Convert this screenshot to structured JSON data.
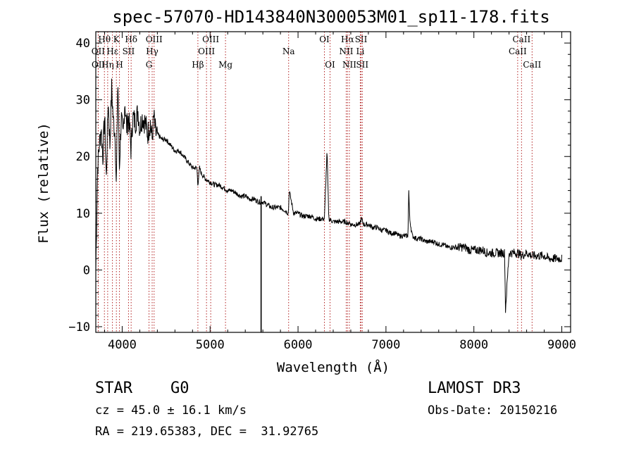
{
  "chart_data": {
    "type": "line",
    "title": "spec-57070-HD143840N300053M01_sp11-178.fits",
    "xlabel": "Wavelength (Å)",
    "ylabel": "Flux (relative)",
    "xlim": [
      3700,
      9100
    ],
    "ylim": [
      -11,
      42
    ],
    "xticks": [
      4000,
      5000,
      6000,
      7000,
      8000,
      9000
    ],
    "yticks": [
      -10,
      0,
      10,
      20,
      30,
      40
    ],
    "xtick_labels": [
      "4000",
      "5000",
      "6000",
      "7000",
      "8000",
      "9000"
    ],
    "ytick_labels": [
      "−10",
      "0",
      "10",
      "20",
      "30",
      "40"
    ],
    "spectrum": {
      "x": [
        3700,
        3720,
        3740,
        3760,
        3780,
        3800,
        3820,
        3840,
        3860,
        3880,
        3900,
        3920,
        3933,
        3950,
        3968,
        3990,
        4010,
        4030,
        4050,
        4070,
        4090,
        4101,
        4120,
        4150,
        4180,
        4200,
        4230,
        4260,
        4290,
        4320,
        4340,
        4360,
        4380,
        4400,
        4450,
        4500,
        4550,
        4600,
        4650,
        4700,
        4750,
        4800,
        4850,
        4861,
        4880,
        4900,
        4950,
        5000,
        5050,
        5100,
        5150,
        5200,
        5250,
        5300,
        5350,
        5400,
        5450,
        5500,
        5550,
        5600,
        5650,
        5700,
        5750,
        5800,
        5850,
        5890,
        5900,
        5950,
        6000,
        6050,
        6100,
        6150,
        6200,
        6250,
        6300,
        6330,
        6350,
        6400,
        6450,
        6500,
        6550,
        6563,
        6580,
        6600,
        6650,
        6700,
        6720,
        6750,
        6800,
        6850,
        6900,
        6950,
        7000,
        7050,
        7100,
        7150,
        7200,
        7250,
        7260,
        7270,
        7300,
        7350,
        7400,
        7450,
        7500,
        7550,
        7600,
        7650,
        7700,
        7750,
        7800,
        7850,
        7900,
        7950,
        8000,
        8050,
        8100,
        8150,
        8200,
        8250,
        8300,
        8350,
        8360,
        8400,
        8450,
        8500,
        8542,
        8600,
        8662,
        8700,
        8750,
        8800,
        8850,
        8900,
        8950,
        9000
      ],
      "y": [
        0,
        18,
        22,
        25,
        20,
        27,
        16,
        30,
        22,
        32,
        26,
        24,
        14,
        34,
        18,
        27,
        23,
        30,
        25,
        27,
        24,
        21,
        27,
        26,
        28,
        25,
        27,
        26,
        24,
        26,
        23,
        27,
        24,
        24,
        23,
        23,
        22,
        21,
        21,
        20,
        19,
        18,
        18,
        15,
        18,
        17,
        16,
        15.5,
        15,
        15,
        14.5,
        14,
        14,
        13.5,
        13,
        13,
        12.5,
        12.5,
        12,
        12,
        11.5,
        11,
        11,
        11,
        10.5,
        10,
        14,
        10,
        10,
        9.5,
        9.5,
        9.5,
        9,
        9,
        9,
        21,
        9,
        8.5,
        8.5,
        8.5,
        8.5,
        8,
        8.5,
        8,
        8,
        8,
        9,
        8,
        8,
        7.5,
        7.5,
        7,
        7,
        6.5,
        6.5,
        6,
        6,
        6,
        14,
        9,
        6,
        5.5,
        5.5,
        5,
        5,
        5,
        4.5,
        4.5,
        4,
        4,
        4,
        4,
        4,
        3.5,
        3.5,
        3.5,
        3.5,
        3,
        3,
        3,
        3,
        3,
        -7,
        3,
        3,
        3,
        2.5,
        3,
        2.5,
        2.5,
        2.5,
        2.5,
        2,
        2,
        2,
        2
      ]
    },
    "dropout_line": {
      "x": 5580,
      "y": [
        13,
        -11
      ]
    },
    "emission_lines": [
      {
        "name": "Hθ",
        "wavelength": 3798,
        "row": 1
      },
      {
        "name": "OII",
        "wavelength": 3727,
        "row": 2
      },
      {
        "name": "OII",
        "wavelength": 3729,
        "row": 3
      },
      {
        "name": "Hη",
        "wavelength": 3835,
        "row": 3
      },
      {
        "name": "K",
        "wavelength": 3934,
        "row": 1
      },
      {
        "name": "Hε",
        "wavelength": 3889,
        "row": 2
      },
      {
        "name": "H",
        "wavelength": 3969,
        "row": 3
      },
      {
        "name": "SII",
        "wavelength": 4072,
        "row": 2
      },
      {
        "name": "Hδ",
        "wavelength": 4102,
        "row": 1
      },
      {
        "name": "OIII",
        "wavelength": 4363,
        "row": 1
      },
      {
        "name": "Hγ",
        "wavelength": 4341,
        "row": 2
      },
      {
        "name": "G",
        "wavelength": 4305,
        "row": 3
      },
      {
        "name": "Hβ",
        "wavelength": 4861,
        "row": 3
      },
      {
        "name": "OIII",
        "wavelength": 5007,
        "row": 1
      },
      {
        "name": "OIII",
        "wavelength": 4959,
        "row": 2
      },
      {
        "name": "Mg",
        "wavelength": 5175,
        "row": 3
      },
      {
        "name": "Na",
        "wavelength": 5893,
        "row": 2
      },
      {
        "name": "OI",
        "wavelength": 6300,
        "row": 1
      },
      {
        "name": "OI",
        "wavelength": 6364,
        "row": 3
      },
      {
        "name": "Hα",
        "wavelength": 6563,
        "row": 1
      },
      {
        "name": "NII",
        "wavelength": 6548,
        "row": 2
      },
      {
        "name": "NII",
        "wavelength": 6584,
        "row": 3
      },
      {
        "name": "SII",
        "wavelength": 6717,
        "row": 1
      },
      {
        "name": "Li",
        "wavelength": 6708,
        "row": 2
      },
      {
        "name": "SII",
        "wavelength": 6731,
        "row": 3
      },
      {
        "name": "CaII",
        "wavelength": 8542,
        "row": 1
      },
      {
        "name": "CaII",
        "wavelength": 8498,
        "row": 2
      },
      {
        "name": "CaII",
        "wavelength": 8662,
        "row": 3
      }
    ],
    "colors": {
      "spectrum": "#000000",
      "line_markers": "#b22222",
      "axes": "#000000"
    }
  },
  "info": {
    "object_class": "STAR",
    "subclass": "G0",
    "survey": "LAMOST DR3",
    "redshift": "cz = 45.0 ± 16.1 km/s",
    "obs_date": "Obs-Date: 20150216",
    "coords": "RA = 219.65383, DEC =  31.92765"
  }
}
